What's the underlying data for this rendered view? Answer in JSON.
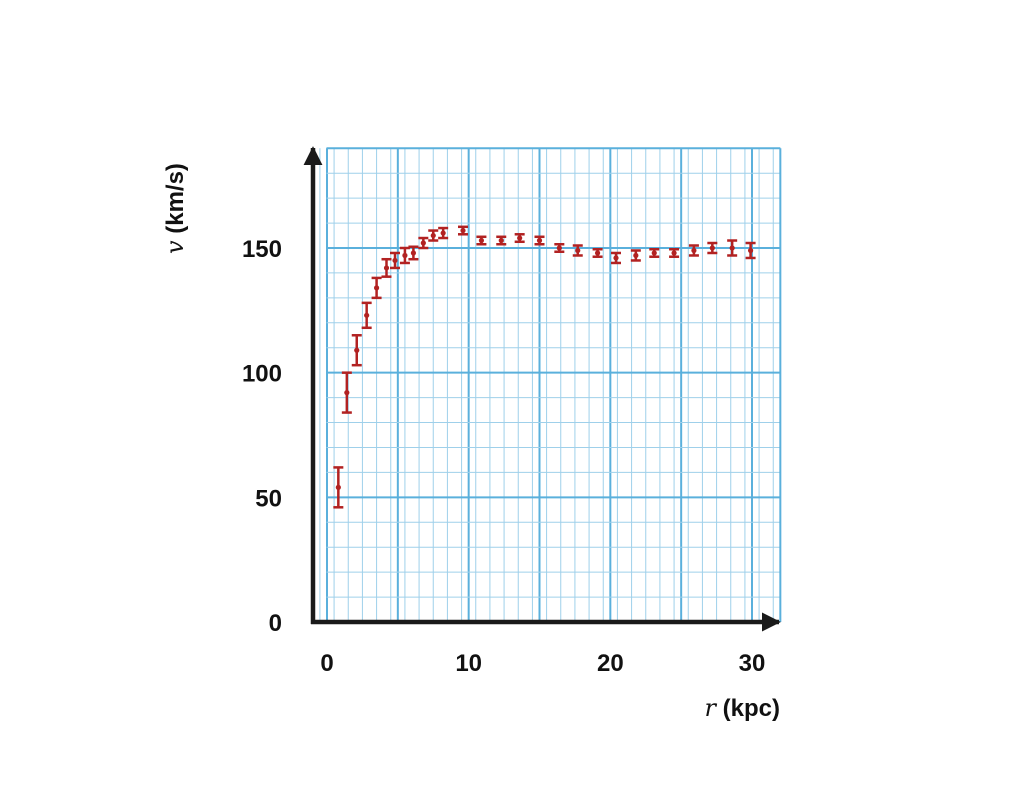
{
  "chart_data": {
    "type": "scatter",
    "xlabel_var": "r",
    "xlabel_unit": " (kpc)",
    "ylabel_var": "v",
    "ylabel_unit": " (km/s)",
    "xlim": [
      0,
      32
    ],
    "ylim": [
      0,
      190
    ],
    "x_ticks": [
      0,
      10,
      20,
      30
    ],
    "y_ticks": [
      0,
      50,
      100,
      150
    ],
    "x_tick_labels": [
      "0",
      "10",
      "20",
      "30"
    ],
    "y_tick_labels": [
      "0",
      "50",
      "100",
      "150"
    ],
    "grid": true,
    "colors": {
      "grid_minor": "#9fd0ea",
      "grid_major": "#5ab0dc",
      "axis": "#1a1a1a",
      "data": "#b22222"
    },
    "points": [
      {
        "x": 0.8,
        "y": 54,
        "err": 8
      },
      {
        "x": 1.4,
        "y": 92,
        "err": 8
      },
      {
        "x": 2.1,
        "y": 109,
        "err": 6
      },
      {
        "x": 2.8,
        "y": 123,
        "err": 5
      },
      {
        "x": 3.5,
        "y": 134,
        "err": 4
      },
      {
        "x": 4.2,
        "y": 142,
        "err": 3.5
      },
      {
        "x": 4.8,
        "y": 145,
        "err": 3
      },
      {
        "x": 5.5,
        "y": 147,
        "err": 3
      },
      {
        "x": 6.1,
        "y": 148,
        "err": 2.5
      },
      {
        "x": 6.8,
        "y": 152,
        "err": 2
      },
      {
        "x": 7.5,
        "y": 155,
        "err": 2
      },
      {
        "x": 8.2,
        "y": 156,
        "err": 2
      },
      {
        "x": 9.6,
        "y": 157,
        "err": 1.5
      },
      {
        "x": 10.9,
        "y": 153,
        "err": 1.5
      },
      {
        "x": 12.3,
        "y": 153,
        "err": 1.5
      },
      {
        "x": 13.6,
        "y": 154,
        "err": 1.5
      },
      {
        "x": 15.0,
        "y": 153,
        "err": 1.5
      },
      {
        "x": 16.4,
        "y": 150,
        "err": 1.5
      },
      {
        "x": 17.7,
        "y": 149,
        "err": 2
      },
      {
        "x": 19.1,
        "y": 148,
        "err": 1.5
      },
      {
        "x": 20.4,
        "y": 146,
        "err": 2
      },
      {
        "x": 21.8,
        "y": 147,
        "err": 2
      },
      {
        "x": 23.1,
        "y": 148,
        "err": 1.5
      },
      {
        "x": 24.5,
        "y": 148,
        "err": 1.5
      },
      {
        "x": 25.9,
        "y": 149,
        "err": 2
      },
      {
        "x": 27.2,
        "y": 150,
        "err": 2
      },
      {
        "x": 28.6,
        "y": 150,
        "err": 3
      },
      {
        "x": 29.9,
        "y": 149,
        "err": 3
      }
    ]
  }
}
